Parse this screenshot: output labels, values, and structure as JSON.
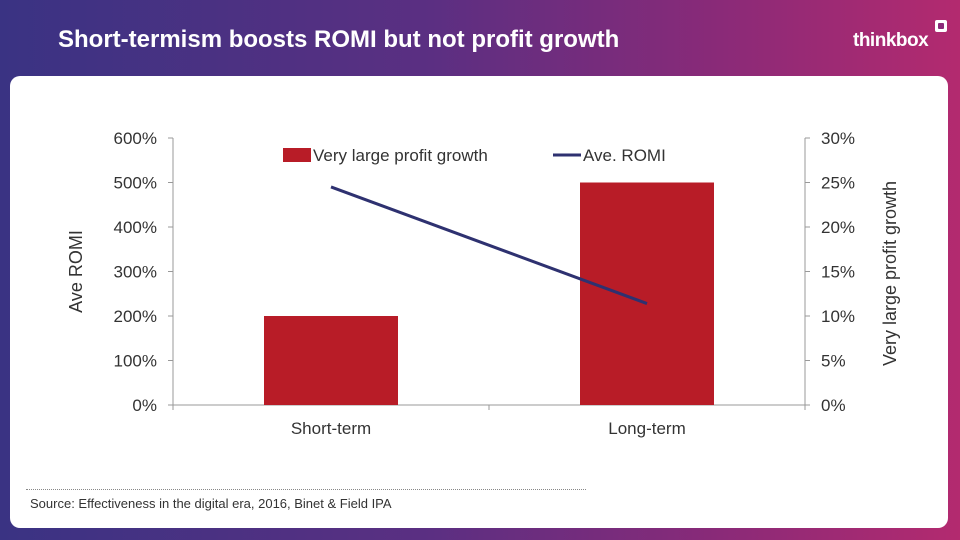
{
  "header": {
    "title": "Short-termism boosts ROMI but not profit growth",
    "logo_text": "thinkbox"
  },
  "source": "Source: Effectiveness in the digital era, 2016, Binet & Field IPA",
  "colors": {
    "bar": "#b81c27",
    "line": "#2e3170",
    "axis": "#999999"
  },
  "chart_data": {
    "type": "bar",
    "categories": [
      "Short-term",
      "Long-term"
    ],
    "series": [
      {
        "name": "Very large profit growth",
        "type": "bar",
        "axis": "right",
        "values": [
          10,
          25
        ]
      },
      {
        "name": "Ave. ROMI",
        "type": "line",
        "axis": "left",
        "values": [
          490,
          228
        ]
      }
    ],
    "y_left": {
      "label": "Ave ROMI",
      "min": 0,
      "max": 600,
      "step": 100,
      "ticks": [
        "0%",
        "100%",
        "200%",
        "300%",
        "400%",
        "500%",
        "600%"
      ]
    },
    "y_right": {
      "label": "Very large profit growth",
      "min": 0,
      "max": 30,
      "step": 5,
      "ticks": [
        "0%",
        "5%",
        "10%",
        "15%",
        "20%",
        "25%",
        "30%"
      ]
    },
    "grid": false,
    "legend": "top"
  }
}
